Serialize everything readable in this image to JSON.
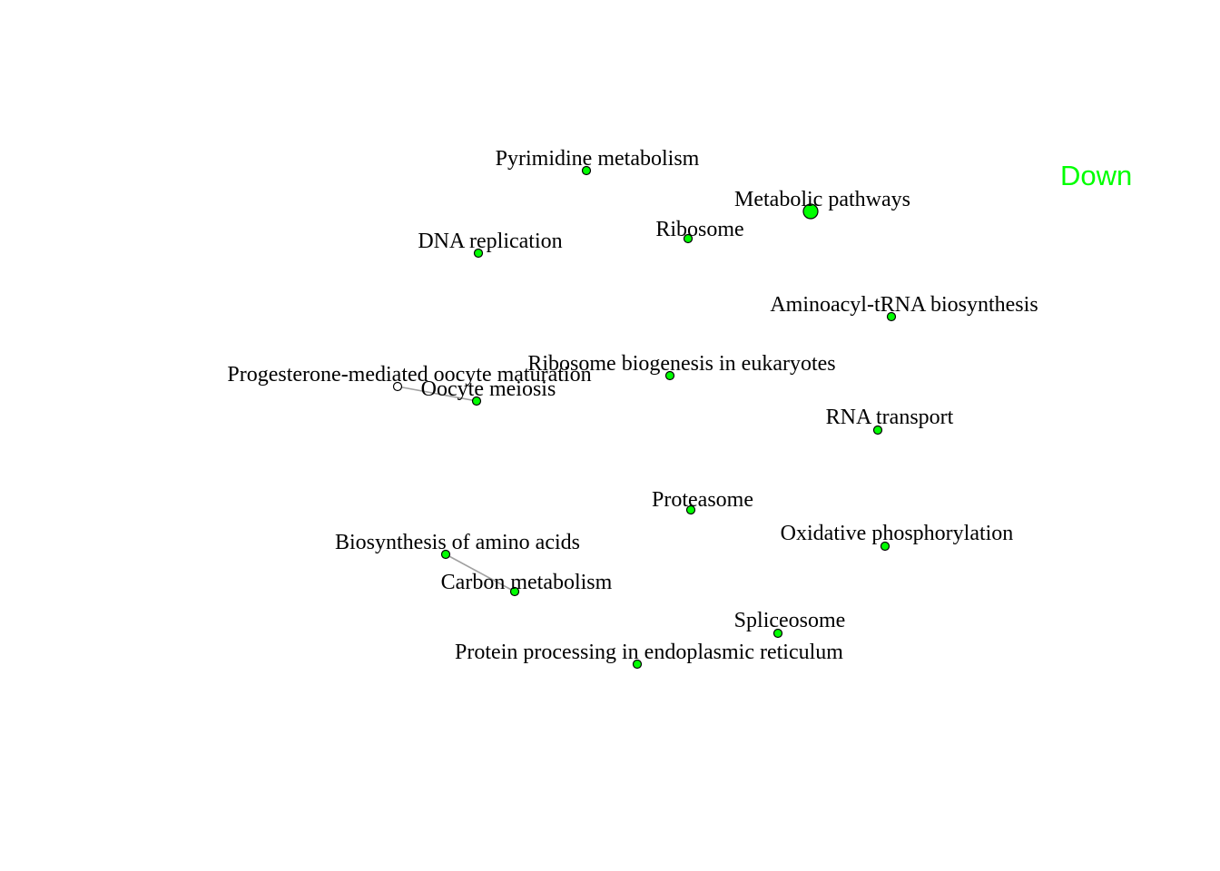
{
  "legend": {
    "label": "Down",
    "color": "#00ff00"
  },
  "colors": {
    "node_fill": "#00ff00",
    "node_stroke": "#000000",
    "edge": "#a0a0a0",
    "unfilled_node": "#ffffff"
  },
  "nodes": [
    {
      "id": "pyrimidine-metabolism",
      "label": "Pyrimidine metabolism",
      "size": "small",
      "filled": true
    },
    {
      "id": "metabolic-pathways",
      "label": "Metabolic pathways",
      "size": "large",
      "filled": true
    },
    {
      "id": "ribosome",
      "label": "Ribosome",
      "size": "small",
      "filled": true
    },
    {
      "id": "dna-replication",
      "label": "DNA replication",
      "size": "small",
      "filled": true
    },
    {
      "id": "aminoacyl-trna-biosynthesis",
      "label": "Aminoacyl-tRNA biosynthesis",
      "size": "small",
      "filled": true
    },
    {
      "id": "ribosome-biogenesis",
      "label": "Ribosome biogenesis in eukaryotes",
      "size": "small",
      "filled": true
    },
    {
      "id": "progesterone-oocyte-maturation",
      "label": "Progesterone-mediated oocyte maturation",
      "size": "small",
      "filled": false
    },
    {
      "id": "oocyte-meiosis",
      "label": "Oocyte meiosis",
      "size": "small",
      "filled": true
    },
    {
      "id": "rna-transport",
      "label": "RNA transport",
      "size": "small",
      "filled": true
    },
    {
      "id": "proteasome",
      "label": "Proteasome",
      "size": "small",
      "filled": true
    },
    {
      "id": "oxidative-phosphorylation",
      "label": "Oxidative phosphorylation",
      "size": "small",
      "filled": true
    },
    {
      "id": "biosynthesis-amino-acids",
      "label": "Biosynthesis of amino acids",
      "size": "small",
      "filled": true
    },
    {
      "id": "carbon-metabolism",
      "label": "Carbon metabolism",
      "size": "small",
      "filled": true
    },
    {
      "id": "spliceosome",
      "label": "Spliceosome",
      "size": "small",
      "filled": true
    },
    {
      "id": "protein-processing-er",
      "label": "Protein processing in endoplasmic reticulum",
      "size": "small",
      "filled": true
    }
  ],
  "edges": [
    {
      "from": "progesterone-oocyte-maturation",
      "to": "oocyte-meiosis"
    },
    {
      "from": "biosynthesis-amino-acids",
      "to": "carbon-metabolism"
    }
  ]
}
